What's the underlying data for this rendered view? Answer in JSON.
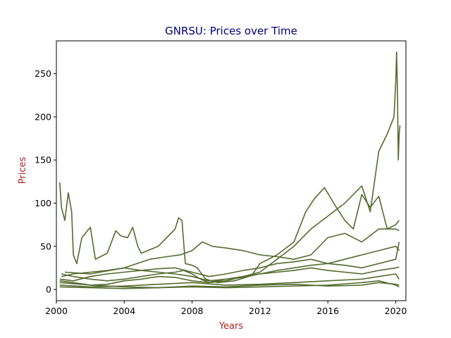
{
  "chart_data": {
    "type": "line",
    "title": "GNRSU: Prices over Time",
    "xlabel": "Years",
    "ylabel": "Prices",
    "xlim": [
      2000.0,
      2020.6
    ],
    "ylim": [
      -13,
      288
    ],
    "x_ticks": [
      2000,
      2004,
      2008,
      2012,
      2016,
      2020
    ],
    "x_tick_labels": [
      "2000",
      "2004",
      "2008",
      "2012",
      "2016",
      "2020"
    ],
    "y_ticks": [
      0,
      50,
      100,
      150,
      200,
      250
    ],
    "y_tick_labels": [
      "0",
      "50",
      "100",
      "150",
      "200",
      "250"
    ],
    "grid": false,
    "colors": {
      "series": "#556b2f",
      "title": "#000080",
      "axis_label": "#b22222",
      "axis": "#000000"
    },
    "series": [
      {
        "x": [
          2000.2,
          2000.3,
          2000.5,
          2000.7,
          2000.9,
          2001.0,
          2001.2,
          2001.5,
          2002.0,
          2002.3,
          2002.6,
          2003.0,
          2003.5,
          2003.8,
          2004.2,
          2004.5,
          2004.8,
          2005.0,
          2006.0,
          2007.0,
          2007.2,
          2007.4,
          2007.6,
          2008.0,
          2008.3,
          2008.8,
          2009.5,
          2010.5,
          2011.5,
          2012.0,
          2013.0,
          2014.0,
          2014.7,
          2015.2,
          2015.8,
          2016.5,
          2017.0,
          2017.5,
          2018.0,
          2018.5,
          2019.0,
          2019.5,
          2020.0,
          2020.2
        ],
        "y": [
          124,
          95,
          80,
          112,
          90,
          40,
          30,
          60,
          72,
          35,
          38,
          42,
          68,
          62,
          60,
          72,
          50,
          42,
          50,
          70,
          83,
          80,
          30,
          28,
          25,
          12,
          8,
          10,
          16,
          30,
          40,
          55,
          90,
          105,
          118,
          95,
          80,
          70,
          110,
          95,
          108,
          70,
          75,
          80
        ]
      },
      {
        "x": [
          2000.3,
          2001.0,
          2002.0,
          2003.0,
          2004.0,
          2005.0,
          2006.0,
          2007.0,
          2007.5,
          2008.0,
          2008.5,
          2009.0,
          2010.0,
          2011.0,
          2012.0,
          2013.0,
          2014.0,
          2015.0,
          2016.0,
          2017.0,
          2018.0,
          2018.5,
          2019.0,
          2019.5,
          2019.9,
          2020.0,
          2020.05,
          2020.1,
          2020.15,
          2020.2,
          2020.25
        ],
        "y": [
          18,
          15,
          12,
          10,
          12,
          15,
          18,
          20,
          22,
          18,
          12,
          8,
          10,
          15,
          20,
          35,
          50,
          70,
          85,
          100,
          120,
          90,
          160,
          180,
          200,
          240,
          275,
          230,
          150,
          180,
          190
        ]
      },
      {
        "x": [
          2000.5,
          2002.0,
          2004.0,
          2005.5,
          2006.5,
          2007.3,
          2008.0,
          2008.6,
          2009.2,
          2010.0,
          2011.0,
          2012.0,
          2013.0,
          2014.0,
          2015.0,
          2016.0,
          2017.0,
          2018.0,
          2019.0,
          2020.0,
          2020.2
        ],
        "y": [
          20,
          18,
          25,
          35,
          38,
          40,
          45,
          55,
          50,
          48,
          45,
          40,
          38,
          35,
          40,
          60,
          65,
          55,
          70,
          70,
          68
        ]
      },
      {
        "x": [
          2000.3,
          2001.0,
          2002.0,
          2003.0,
          2004.0,
          2005.0,
          2006.0,
          2007.0,
          2008.0,
          2009.0,
          2010.0,
          2011.0,
          2012.0,
          2013.0,
          2014.0,
          2015.0,
          2016.0,
          2017.0,
          2018.0,
          2019.0,
          2020.0,
          2020.2
        ],
        "y": [
          15,
          18,
          20,
          22,
          25,
          22,
          24,
          25,
          20,
          15,
          18,
          22,
          25,
          30,
          32,
          35,
          30,
          28,
          25,
          30,
          35,
          55
        ]
      },
      {
        "x": [
          2000.2,
          2001.0,
          2002.0,
          2003.0,
          2004.0,
          2005.0,
          2006.0,
          2007.0,
          2008.0,
          2009.0,
          2010.0,
          2011.0,
          2012.0,
          2013.0,
          2014.0,
          2015.0,
          2016.0,
          2017.0,
          2018.0,
          2019.0,
          2020.0,
          2020.2
        ],
        "y": [
          12,
          10,
          15,
          18,
          20,
          22,
          20,
          18,
          15,
          10,
          12,
          14,
          18,
          22,
          25,
          28,
          30,
          35,
          40,
          45,
          50,
          45
        ]
      },
      {
        "x": [
          2000.2,
          2001.0,
          2002.0,
          2003.0,
          2004.0,
          2005.0,
          2006.0,
          2007.0,
          2008.0,
          2009.0,
          2010.0,
          2011.0,
          2012.0,
          2013.0,
          2014.0,
          2015.0,
          2016.0,
          2017.0,
          2018.0,
          2019.0,
          2020.0,
          2020.2
        ],
        "y": [
          10,
          8,
          5,
          6,
          10,
          12,
          15,
          14,
          10,
          8,
          12,
          15,
          18,
          20,
          22,
          25,
          22,
          20,
          18,
          22,
          25,
          26
        ]
      },
      {
        "x": [
          2000.2,
          2002.0,
          2004.0,
          2006.0,
          2008.0,
          2010.0,
          2012.0,
          2014.0,
          2016.0,
          2018.0,
          2019.0,
          2020.0,
          2020.2
        ],
        "y": [
          5,
          3,
          4,
          6,
          8,
          5,
          6,
          8,
          10,
          12,
          15,
          18,
          12
        ]
      },
      {
        "x": [
          2000.2,
          2002.0,
          2004.0,
          2006.0,
          2008.0,
          2010.0,
          2012.0,
          2014.0,
          2016.0,
          2018.0,
          2019.0,
          2020.0,
          2020.2
        ],
        "y": [
          8,
          5,
          3,
          2,
          4,
          3,
          5,
          6,
          4,
          5,
          8,
          6,
          5
        ]
      },
      {
        "x": [
          2000.2,
          2002.0,
          2004.0,
          2006.0,
          2008.0,
          2010.0,
          2012.0,
          2014.0,
          2016.0,
          2018.0,
          2019.0,
          2020.0,
          2020.2
        ],
        "y": [
          3,
          2,
          1,
          2,
          3,
          2,
          3,
          4,
          5,
          8,
          10,
          5,
          3
        ]
      }
    ]
  }
}
